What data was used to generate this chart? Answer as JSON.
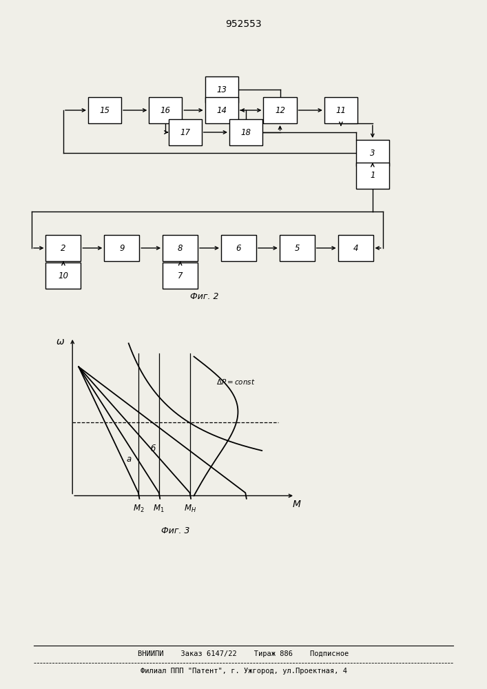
{
  "title": "952553",
  "bg_color": "#f0efe8",
  "footer_line1": "ВНИИПИ    Заказ 6147/22    Тираж 886    Подписное",
  "footer_line2": "Филиал ППП \"Патент\", г. Ужгород, ул.Проектная, 4"
}
